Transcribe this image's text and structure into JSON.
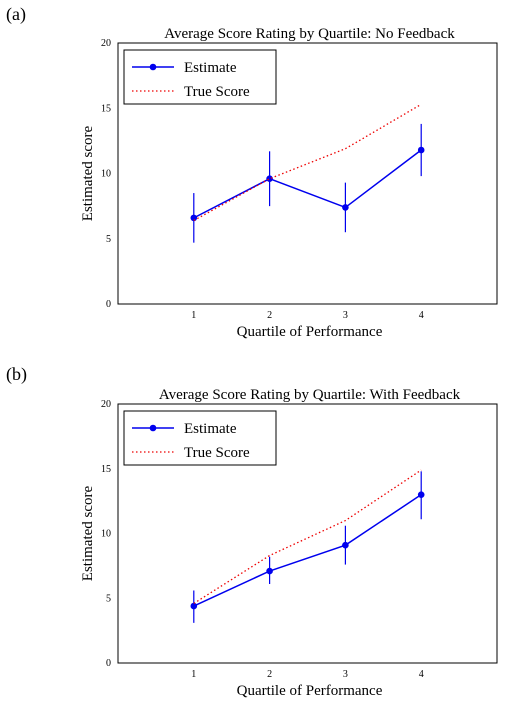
{
  "panels": [
    {
      "letter": "(a)",
      "chart_data": {
        "type": "line",
        "title": "Average Score Rating by Quartile: No Feedback",
        "xlabel": "Quartile of Performance",
        "ylabel": "Estimated score",
        "x": [
          1,
          2,
          3,
          4
        ],
        "x_ticks": [
          "1",
          "2",
          "3",
          "4"
        ],
        "y_ticks": [
          "0",
          "5",
          "10",
          "15",
          "20"
        ],
        "xlim": [
          0,
          5
        ],
        "ylim": [
          0,
          20
        ],
        "grid": false,
        "legend_position": "top-left",
        "series": [
          {
            "name": "Estimate",
            "style": "solid-markers",
            "color": "#0000ee",
            "values": [
              6.6,
              9.6,
              7.4,
              11.8
            ],
            "error_low": [
              4.7,
              7.5,
              5.5,
              9.8
            ],
            "error_high": [
              8.5,
              11.7,
              9.3,
              13.8
            ]
          },
          {
            "name": "True Score",
            "style": "dotted",
            "color": "#ee0000",
            "values": [
              6.4,
              9.6,
              11.9,
              15.3
            ]
          }
        ]
      }
    },
    {
      "letter": "(b)",
      "chart_data": {
        "type": "line",
        "title": "Average Score Rating by Quartile: With Feedback",
        "xlabel": "Quartile of Performance",
        "ylabel": "Estimated score",
        "x": [
          1,
          2,
          3,
          4
        ],
        "x_ticks": [
          "1",
          "2",
          "3",
          "4"
        ],
        "y_ticks": [
          "0",
          "5",
          "10",
          "15",
          "20"
        ],
        "xlim": [
          0,
          5
        ],
        "ylim": [
          0,
          20
        ],
        "grid": false,
        "legend_position": "top-left",
        "series": [
          {
            "name": "Estimate",
            "style": "solid-markers",
            "color": "#0000ee",
            "values": [
              4.4,
              7.1,
              9.1,
              13.0
            ],
            "error_low": [
              3.1,
              6.1,
              7.6,
              11.1
            ],
            "error_high": [
              5.6,
              8.2,
              10.6,
              14.8
            ]
          },
          {
            "name": "True Score",
            "style": "dotted",
            "color": "#ee0000",
            "values": [
              4.6,
              8.3,
              11.0,
              14.9
            ]
          }
        ]
      }
    }
  ]
}
